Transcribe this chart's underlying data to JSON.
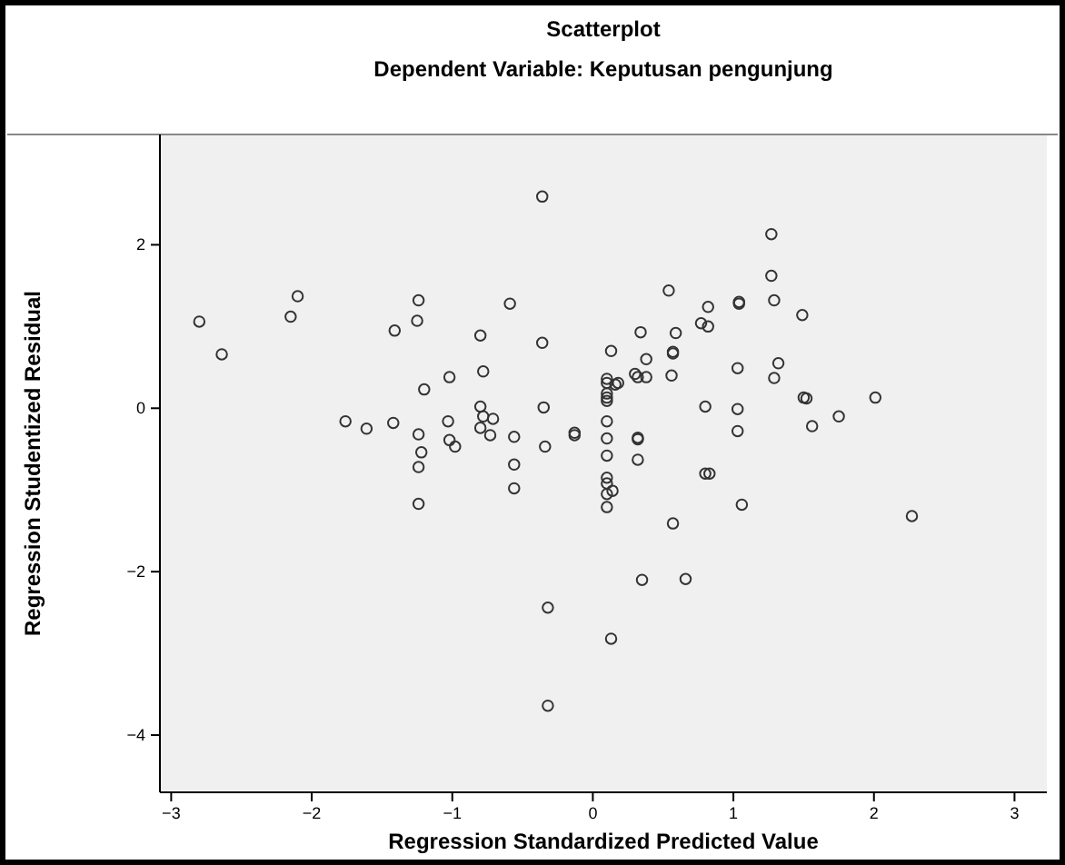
{
  "chart_data": {
    "type": "scatter",
    "title": "Scatterplot",
    "subtitle": "Dependent Variable: Keputusan pengunjung",
    "xlabel": "Regression Standardized Predicted Value",
    "ylabel": "Regression Studentized Residual",
    "xlim": [
      -3.08,
      3.23
    ],
    "ylim": [
      -4.7,
      3.35
    ],
    "xticks": [
      -3,
      -2,
      -1,
      0,
      1,
      2,
      3
    ],
    "yticks": [
      -4,
      -2,
      0,
      2
    ],
    "grid": false,
    "marker": "circle",
    "series": [
      {
        "color": "#333333",
        "x": [
          -2.8,
          -2.64,
          -2.1,
          -2.15,
          -1.24,
          -1.25,
          -1.41,
          -0.59,
          -0.36,
          -0.8,
          -0.36,
          0.13,
          -1.02,
          -0.78,
          -1.2,
          -0.8,
          -0.35,
          -1.76,
          -1.61,
          -1.42,
          -1.24,
          -1.22,
          -1.24,
          -1.24,
          -1.03,
          -1.02,
          -0.98,
          -0.78,
          -0.8,
          -0.71,
          -0.73,
          -0.56,
          -0.56,
          -0.56,
          -0.34,
          -0.13,
          -0.13,
          -0.32,
          -0.32,
          0.13,
          0.1,
          0.1,
          0.1,
          0.1,
          0.1,
          0.1,
          0.1,
          0.1,
          0.1,
          0.1,
          0.1,
          0.1,
          0.14,
          0.16,
          1.27,
          1.27,
          1.29,
          1.49,
          0.54,
          0.82,
          1.04,
          1.04,
          0.77,
          0.82,
          0.34,
          0.59,
          0.38,
          0.57,
          0.57,
          1.32,
          1.03,
          1.29,
          0.3,
          0.32,
          0.38,
          0.56,
          0.18,
          0.8,
          1.03,
          1.5,
          1.52,
          2.01,
          1.56,
          1.75,
          1.03,
          0.32,
          0.32,
          0.32,
          0.8,
          0.83,
          1.06,
          0.57,
          2.27,
          0.35,
          0.66
        ],
        "values": [
          1.06,
          0.66,
          1.37,
          1.12,
          1.32,
          1.07,
          0.95,
          1.28,
          2.59,
          0.89,
          0.8,
          0.7,
          0.38,
          0.45,
          0.23,
          0.02,
          0.01,
          -0.16,
          -0.25,
          -0.18,
          -0.32,
          -0.54,
          -0.72,
          -1.17,
          -0.16,
          -0.39,
          -0.47,
          -0.1,
          -0.24,
          -0.13,
          -0.33,
          -0.35,
          -0.69,
          -0.98,
          -0.47,
          -0.3,
          -0.33,
          -2.44,
          -3.64,
          -2.82,
          0.36,
          0.31,
          0.18,
          0.13,
          0.09,
          -0.16,
          -0.37,
          -0.58,
          -0.85,
          -0.92,
          -1.05,
          -1.21,
          -1.01,
          0.29,
          2.13,
          1.62,
          1.32,
          1.14,
          1.44,
          1.24,
          1.28,
          1.3,
          1.04,
          1.0,
          0.93,
          0.92,
          0.6,
          0.67,
          0.69,
          0.55,
          0.49,
          0.37,
          0.42,
          0.38,
          0.38,
          0.4,
          0.31,
          0.02,
          -0.01,
          0.13,
          0.12,
          0.13,
          -0.22,
          -0.1,
          -0.28,
          -0.36,
          -0.38,
          -0.63,
          -0.8,
          -0.8,
          -1.18,
          -1.41,
          -1.32,
          -2.1,
          -2.09
        ]
      }
    ]
  }
}
